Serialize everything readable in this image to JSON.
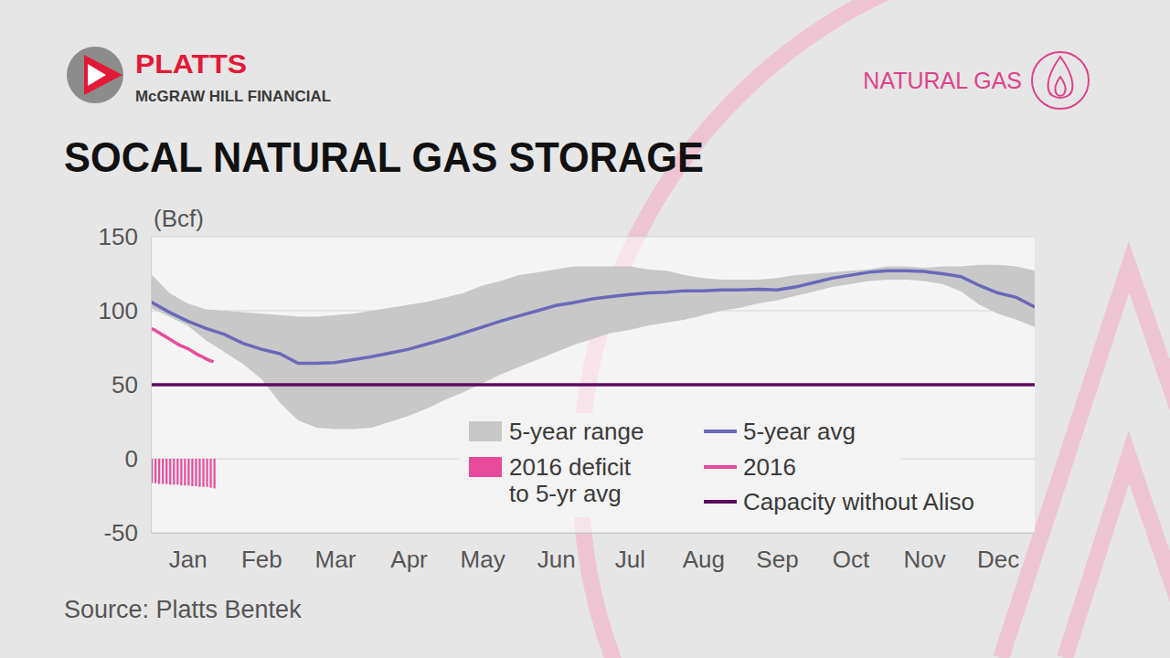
{
  "chart_data": {
    "type": "line",
    "title": "SOCAL NATURAL GAS STORAGE",
    "annotations": [
      "PLATTS",
      "McGRAW HILL FINANCIAL",
      "NATURAL GAS"
    ],
    "source": "Source: Platts Bentek",
    "y_label": "(Bcf)",
    "xlim": [
      0,
      12
    ],
    "xticks": [
      {
        "value": 0.5,
        "label": "Jan"
      },
      {
        "value": 1.5,
        "label": "Feb"
      },
      {
        "value": 2.5,
        "label": "Mar"
      },
      {
        "value": 3.5,
        "label": "Apr"
      },
      {
        "value": 4.5,
        "label": "May"
      },
      {
        "value": 5.5,
        "label": "Jun"
      },
      {
        "value": 6.5,
        "label": "Jul"
      },
      {
        "value": 7.5,
        "label": "Aug"
      },
      {
        "value": 8.5,
        "label": "Sep"
      },
      {
        "value": 9.5,
        "label": "Oct"
      },
      {
        "value": 10.5,
        "label": "Nov"
      },
      {
        "value": 11.5,
        "label": "Dec"
      }
    ],
    "ylim": [
      -50,
      150
    ],
    "yticks": [
      -50,
      0,
      50,
      100,
      150
    ],
    "grid": true,
    "legend": "lower right",
    "series": [
      {
        "name": "5-year range",
        "type": "band",
        "color": "#c8c8c8",
        "x": [
          0,
          0.25,
          0.5,
          0.75,
          1,
          1.25,
          1.5,
          1.75,
          2,
          2.25,
          2.5,
          2.75,
          3,
          3.25,
          3.5,
          3.75,
          4,
          4.25,
          4.5,
          4.75,
          5,
          5.25,
          5.5,
          5.75,
          6,
          6.25,
          6.5,
          6.75,
          7,
          7.25,
          7.5,
          7.75,
          8,
          8.25,
          8.5,
          8.75,
          9,
          9.25,
          9.5,
          9.75,
          10,
          10.25,
          10.5,
          10.75,
          11,
          11.25,
          11.5,
          11.75,
          12
        ],
        "lower": [
          102,
          96,
          90,
          80,
          72,
          64,
          54,
          38,
          26,
          21,
          20,
          20,
          21,
          25,
          29,
          34,
          40,
          45,
          51,
          57,
          62,
          67,
          72,
          77,
          81,
          85,
          87,
          90,
          92,
          94,
          97,
          100,
          102,
          105,
          107,
          110,
          113,
          116,
          118,
          120,
          121,
          121,
          120,
          118,
          113,
          104,
          98,
          94,
          89
        ],
        "upper": [
          125,
          112,
          105,
          101,
          100,
          99,
          98,
          97,
          96,
          96,
          97,
          98,
          100,
          102,
          104,
          106,
          109,
          112,
          117,
          120,
          124,
          126,
          128,
          130,
          130,
          130,
          130,
          128,
          127,
          124,
          122,
          121,
          121,
          121,
          122,
          124,
          125,
          126,
          127,
          128,
          130,
          130,
          129,
          130,
          130,
          131,
          131,
          130,
          127
        ]
      },
      {
        "name": "5-year avg",
        "type": "line",
        "color": "#6a68b8",
        "x": [
          0,
          0.25,
          0.5,
          0.75,
          1,
          1.25,
          1.5,
          1.75,
          2,
          2.25,
          2.5,
          2.75,
          3,
          3.25,
          3.5,
          3.75,
          4,
          4.25,
          4.5,
          4.75,
          5,
          5.25,
          5.5,
          5.75,
          6,
          6.25,
          6.5,
          6.75,
          7,
          7.25,
          7.5,
          7.75,
          8,
          8.25,
          8.5,
          8.75,
          9,
          9.25,
          9.5,
          9.75,
          10,
          10.25,
          10.5,
          10.75,
          11,
          11.25,
          11.5,
          11.75,
          12
        ],
        "values": [
          106,
          99,
          93,
          88,
          84,
          78,
          74,
          71,
          64.5,
          64.5,
          65,
          67,
          69,
          71.5,
          74,
          77.5,
          81,
          85,
          89,
          93,
          96.5,
          100,
          103.5,
          105.5,
          108,
          109.5,
          111,
          112,
          112.5,
          113.5,
          113.5,
          114,
          114,
          114.5,
          114,
          116,
          119,
          122,
          124,
          126,
          127,
          127,
          126.5,
          125,
          123,
          117,
          112,
          109,
          102.5
        ]
      },
      {
        "name": "2016 deficit\nto 5-yr avg",
        "type": "bar",
        "color": "#e84b9b",
        "x": [
          0,
          0.05,
          0.1,
          0.15,
          0.2,
          0.25,
          0.3,
          0.35,
          0.4,
          0.45,
          0.5,
          0.55,
          0.6,
          0.65,
          0.7,
          0.75,
          0.8,
          0.85
        ],
        "values": [
          -16.5,
          -16.5,
          -17,
          -17,
          -17,
          -17.5,
          -17.5,
          -17.5,
          -18,
          -18,
          -18,
          -18.5,
          -18.5,
          -19,
          -19,
          -19,
          -19.5,
          -20
        ]
      },
      {
        "name": "2016",
        "type": "line",
        "color": "#e84b9b",
        "x": [
          0,
          0.05,
          0.1,
          0.15,
          0.2,
          0.25,
          0.3,
          0.35,
          0.4,
          0.45,
          0.5,
          0.55,
          0.6,
          0.65,
          0.7,
          0.75,
          0.8,
          0.85
        ],
        "values": [
          88,
          87,
          85.5,
          84,
          82.5,
          81,
          79.5,
          78,
          76.5,
          75.5,
          74.5,
          73,
          71.5,
          70,
          69,
          67.5,
          66.5,
          65.5
        ]
      },
      {
        "name": "Capacity without Aliso",
        "type": "line",
        "color": "#5c0e5b",
        "x": [
          0,
          12
        ],
        "values": [
          50,
          50
        ]
      }
    ]
  }
}
